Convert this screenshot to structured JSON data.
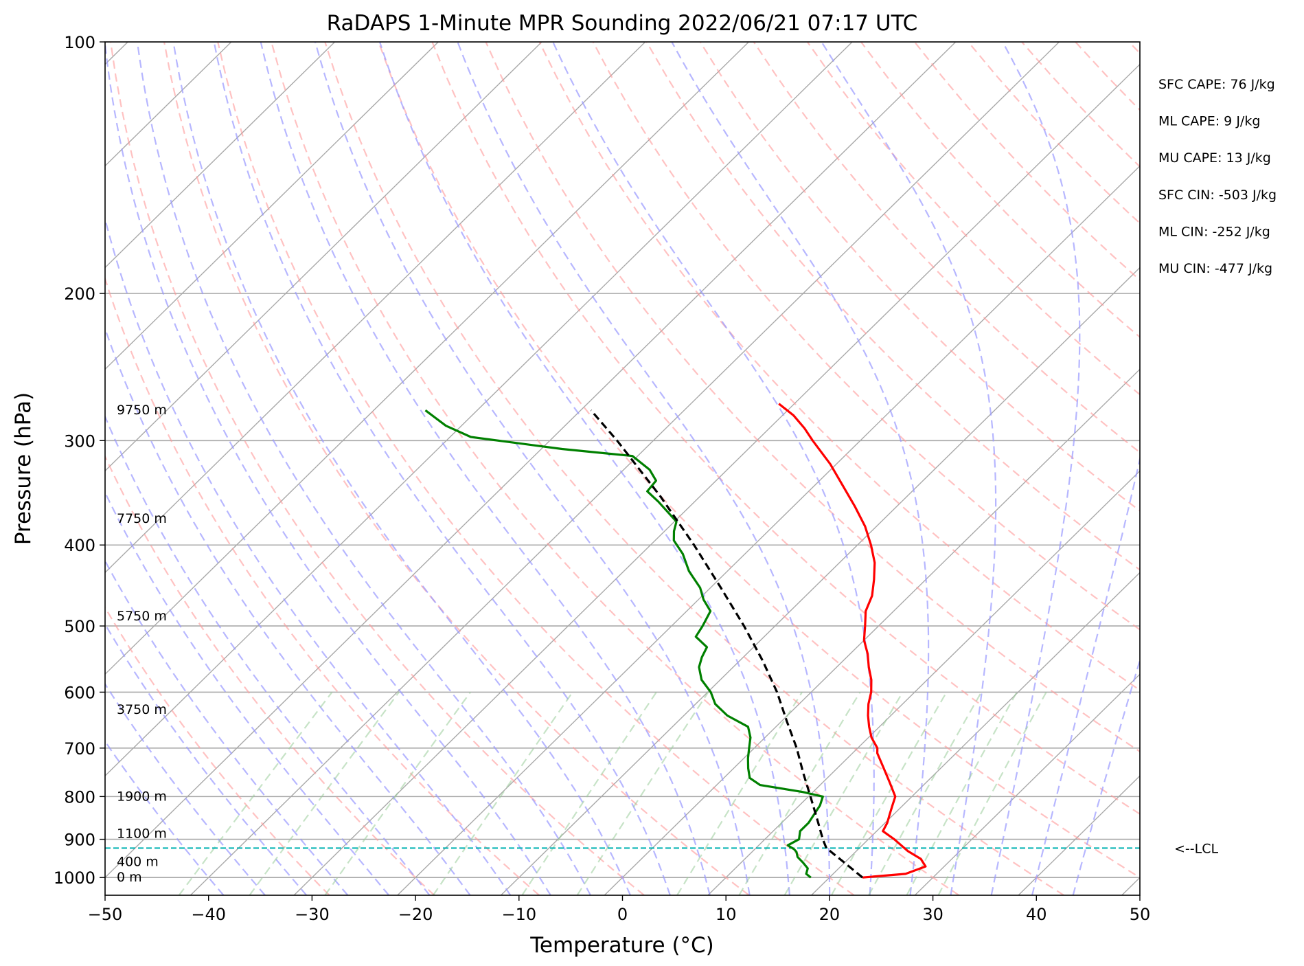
{
  "chart_data": {
    "type": "line",
    "title": "RaDAPS 1-Minute MPR Sounding 2022/06/21 07:17 UTC",
    "xlabel": "Temperature (°C)",
    "ylabel": "Pressure (hPa)",
    "xlim": [
      -50,
      50
    ],
    "ylim": [
      1050,
      100
    ],
    "y_scale": "log",
    "skew_t": true,
    "grid": true,
    "x_ticks": [
      -50,
      -40,
      -30,
      -20,
      -10,
      0,
      10,
      20,
      30,
      40,
      50
    ],
    "x_tick_labels": [
      "−50",
      "−40",
      "−30",
      "−20",
      "−10",
      "0",
      "10",
      "20",
      "30",
      "40",
      "50"
    ],
    "y_ticks": [
      100,
      200,
      300,
      400,
      500,
      600,
      700,
      800,
      900,
      1000
    ],
    "y_tick_labels": [
      "100",
      "200",
      "300",
      "400",
      "500",
      "600",
      "700",
      "800",
      "900",
      "1000"
    ],
    "series": [
      {
        "key": "temperature",
        "color": "#ff0000",
        "style": "solid",
        "points": [
          [
            1000,
            23.2
          ],
          [
            990,
            27.0
          ],
          [
            970,
            28.2
          ],
          [
            950,
            27.0
          ],
          [
            930,
            25.0
          ],
          [
            900,
            22.5
          ],
          [
            880,
            20.6
          ],
          [
            860,
            20.2
          ],
          [
            840,
            19.6
          ],
          [
            820,
            19.0
          ],
          [
            800,
            18.4
          ],
          [
            770,
            16.5
          ],
          [
            740,
            14.5
          ],
          [
            710,
            12.4
          ],
          [
            700,
            11.9
          ],
          [
            680,
            10.3
          ],
          [
            660,
            9.0
          ],
          [
            640,
            7.8
          ],
          [
            620,
            6.7
          ],
          [
            600,
            5.8
          ],
          [
            580,
            4.6
          ],
          [
            560,
            3.1
          ],
          [
            540,
            1.7
          ],
          [
            520,
            0.0
          ],
          [
            500,
            -1.3
          ],
          [
            480,
            -2.7
          ],
          [
            460,
            -3.6
          ],
          [
            440,
            -5.0
          ],
          [
            420,
            -6.6
          ],
          [
            400,
            -8.7
          ],
          [
            380,
            -11.1
          ],
          [
            360,
            -14.0
          ],
          [
            340,
            -17.2
          ],
          [
            320,
            -20.6
          ],
          [
            300,
            -24.6
          ],
          [
            290,
            -26.6
          ],
          [
            280,
            -28.9
          ],
          [
            271,
            -31.5
          ]
        ]
      },
      {
        "key": "dewpoint",
        "color": "#008000",
        "style": "solid",
        "points": [
          [
            1000,
            18.2
          ],
          [
            990,
            17.4
          ],
          [
            975,
            17.0
          ],
          [
            960,
            16.0
          ],
          [
            945,
            14.9
          ],
          [
            932,
            14.3
          ],
          [
            925,
            13.8
          ],
          [
            915,
            12.8
          ],
          [
            900,
            13.3
          ],
          [
            880,
            12.6
          ],
          [
            860,
            12.6
          ],
          [
            840,
            12.3
          ],
          [
            820,
            12.0
          ],
          [
            800,
            11.4
          ],
          [
            790,
            9.0
          ],
          [
            775,
            4.2
          ],
          [
            760,
            2.5
          ],
          [
            740,
            1.4
          ],
          [
            720,
            0.4
          ],
          [
            700,
            -0.5
          ],
          [
            680,
            -1.4
          ],
          [
            660,
            -2.7
          ],
          [
            640,
            -5.8
          ],
          [
            620,
            -8.1
          ],
          [
            600,
            -9.7
          ],
          [
            580,
            -11.8
          ],
          [
            560,
            -13.3
          ],
          [
            545,
            -14.0
          ],
          [
            530,
            -14.5
          ],
          [
            515,
            -16.6
          ],
          [
            500,
            -17.0
          ],
          [
            480,
            -17.7
          ],
          [
            465,
            -19.5
          ],
          [
            450,
            -21.0
          ],
          [
            430,
            -23.7
          ],
          [
            410,
            -26.0
          ],
          [
            395,
            -28.2
          ],
          [
            385,
            -29.1
          ],
          [
            375,
            -29.8
          ],
          [
            355,
            -33.5
          ],
          [
            345,
            -35.6
          ],
          [
            335,
            -35.8
          ],
          [
            325,
            -37.5
          ],
          [
            313,
            -40.5
          ],
          [
            307,
            -48.0
          ],
          [
            297,
            -58.0
          ],
          [
            288,
            -61.5
          ],
          [
            276,
            -65.0
          ]
        ]
      },
      {
        "key": "parcel",
        "color": "#000000",
        "style": "dashed",
        "points": [
          [
            1000,
            23.2
          ],
          [
            960,
            20.0
          ],
          [
            922,
            16.8
          ],
          [
            900,
            15.6
          ],
          [
            850,
            13.0
          ],
          [
            800,
            10.2
          ],
          [
            750,
            7.2
          ],
          [
            700,
            4.1
          ],
          [
            650,
            0.5
          ],
          [
            600,
            -3.3
          ],
          [
            550,
            -7.8
          ],
          [
            500,
            -13.0
          ],
          [
            450,
            -19.0
          ],
          [
            400,
            -25.8
          ],
          [
            350,
            -33.8
          ],
          [
            300,
            -43.5
          ],
          [
            276,
            -49.0
          ]
        ]
      }
    ],
    "height_labels": [
      {
        "text": "9750 m",
        "p": 276
      },
      {
        "text": "7750 m",
        "p": 372
      },
      {
        "text": "5750 m",
        "p": 487
      },
      {
        "text": "3750 m",
        "p": 630
      },
      {
        "text": "1900 m",
        "p": 800
      },
      {
        "text": "1100 m",
        "p": 886
      },
      {
        "text": "400 m",
        "p": 958
      },
      {
        "text": "0 m",
        "p": 1000
      }
    ],
    "lcl": {
      "p": 922,
      "label": "<--LCL",
      "color": "#00b2b2"
    },
    "indices": [
      "SFC CAPE: 76 J/kg",
      "ML CAPE: 9 J/kg",
      "MU CAPE: 13 J/kg",
      "SFC CIN: -503 J/kg",
      "ML CIN: -252 J/kg",
      "MU CIN: -477 J/kg"
    ],
    "colors": {
      "dry_adiabats": "#ff9999",
      "moist_adiabats": "#9999ff",
      "mixing_ratio": "#99cc99",
      "isotherms": "#a9a9a9",
      "isobars": "#a9a9a9"
    }
  }
}
